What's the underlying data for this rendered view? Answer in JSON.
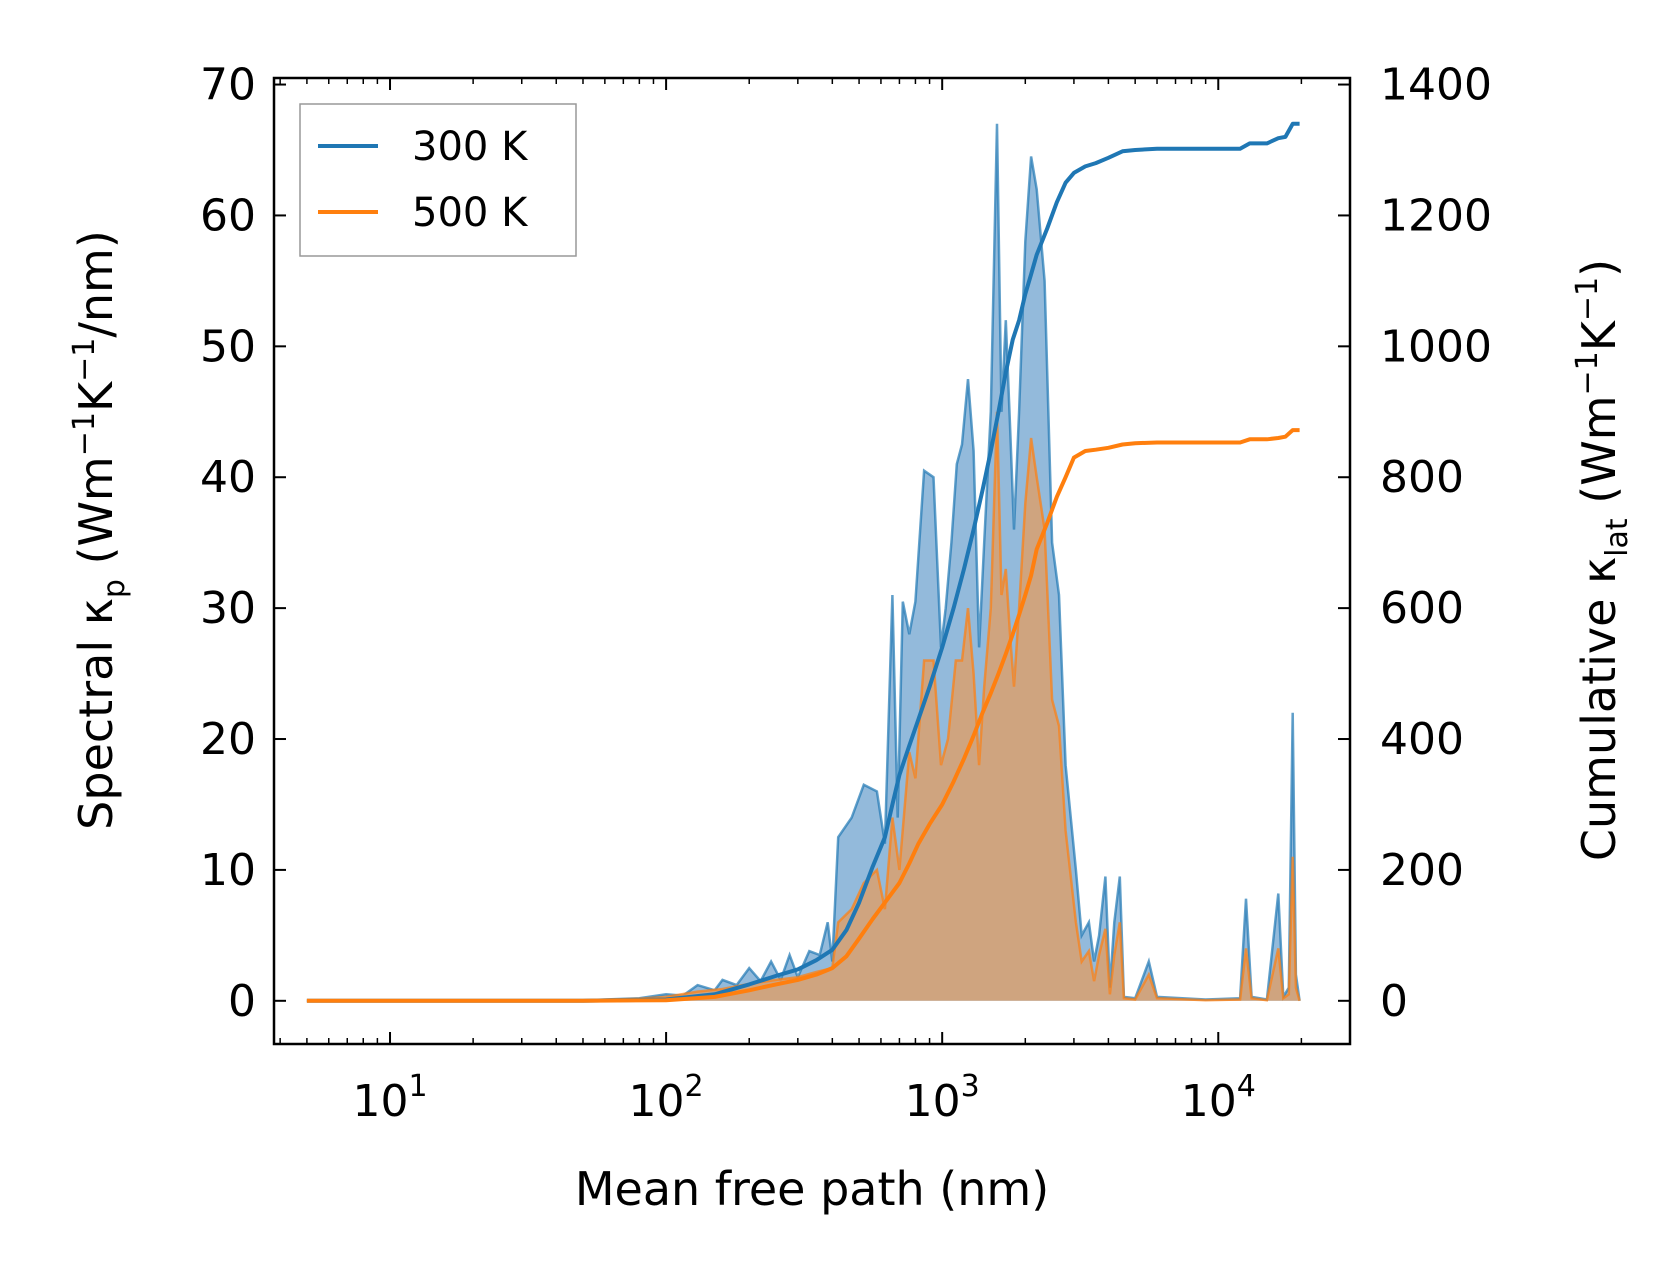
{
  "chart_data": {
    "type": "area+line (dual axis)",
    "xlabel": "Mean free path (nm)",
    "x_scale": "log",
    "xlim": [
      3.8,
      30000
    ],
    "x_ticks": [
      {
        "value": 10,
        "base": "10",
        "exp": "1"
      },
      {
        "value": 100,
        "base": "10",
        "exp": "2"
      },
      {
        "value": 1000,
        "base": "10",
        "exp": "3"
      },
      {
        "value": 10000,
        "base": "10",
        "exp": "4"
      }
    ],
    "ylabel_left": {
      "pre": "Spectral κ",
      "sub": "p",
      "mid": " (Wm",
      "sup1": "−1",
      "mid2": "K",
      "sup2": "−1",
      "post": "/nm)"
    },
    "ylim_left": [
      -3.3,
      70.5
    ],
    "y_ticks_left": [
      "0",
      "10",
      "20",
      "30",
      "40",
      "50",
      "60",
      "70"
    ],
    "ylabel_right": {
      "pre": "Cumulative κ",
      "sub": "lat",
      "mid": " (Wm",
      "sup1": "−1",
      "mid2": "K",
      "sup2": "−1",
      "post": ")"
    },
    "ylim_right": [
      -66,
      1410
    ],
    "y_ticks_right": [
      "0",
      "200",
      "400",
      "600",
      "800",
      "1000",
      "1200",
      "1400"
    ],
    "legend": {
      "location": "upper-left",
      "entries": [
        "300 K",
        "500 K"
      ]
    },
    "colors": {
      "300K": "#1f77b4",
      "500K": "#ff7f0e",
      "fill300": "#6fa3cf",
      "fill500": "#d9a06f"
    },
    "series": [
      {
        "name": "300 K",
        "kind": "spectral (left axis, filled)",
        "points": [
          [
            5,
            0
          ],
          [
            20,
            0
          ],
          [
            50,
            0.05
          ],
          [
            80,
            0.2
          ],
          [
            100,
            0.5
          ],
          [
            115,
            0.4
          ],
          [
            130,
            1.2
          ],
          [
            150,
            0.8
          ],
          [
            160,
            1.6
          ],
          [
            180,
            1.2
          ],
          [
            200,
            2.5
          ],
          [
            220,
            1.5
          ],
          [
            240,
            3.0
          ],
          [
            260,
            1.6
          ],
          [
            280,
            3.5
          ],
          [
            300,
            1.8
          ],
          [
            330,
            3.8
          ],
          [
            360,
            3.5
          ],
          [
            385,
            6
          ],
          [
            400,
            3.0
          ],
          [
            420,
            12.5
          ],
          [
            470,
            14
          ],
          [
            520,
            16.5
          ],
          [
            580,
            16
          ],
          [
            620,
            12
          ],
          [
            660,
            31
          ],
          [
            690,
            14
          ],
          [
            720,
            30.5
          ],
          [
            760,
            28
          ],
          [
            800,
            30.5
          ],
          [
            860,
            40.5
          ],
          [
            930,
            40
          ],
          [
            990,
            27
          ],
          [
            1030,
            30
          ],
          [
            1080,
            35
          ],
          [
            1130,
            41
          ],
          [
            1180,
            42.5
          ],
          [
            1240,
            47.5
          ],
          [
            1300,
            42
          ],
          [
            1360,
            27
          ],
          [
            1420,
            35
          ],
          [
            1500,
            45
          ],
          [
            1580,
            67
          ],
          [
            1640,
            45
          ],
          [
            1700,
            52
          ],
          [
            1760,
            44
          ],
          [
            1820,
            36
          ],
          [
            1900,
            45
          ],
          [
            2000,
            58
          ],
          [
            2100,
            64.5
          ],
          [
            2200,
            62
          ],
          [
            2350,
            55
          ],
          [
            2500,
            35
          ],
          [
            2650,
            31
          ],
          [
            2800,
            18
          ],
          [
            3050,
            10
          ],
          [
            3200,
            5
          ],
          [
            3400,
            6
          ],
          [
            3550,
            3
          ],
          [
            3700,
            5
          ],
          [
            3900,
            9.5
          ],
          [
            4050,
            1
          ],
          [
            4200,
            6
          ],
          [
            4400,
            9.5
          ],
          [
            4550,
            0.3
          ],
          [
            5000,
            0.2
          ],
          [
            5600,
            3
          ],
          [
            6000,
            0.3
          ],
          [
            9000,
            0.1
          ],
          [
            12000,
            0.2
          ],
          [
            12600,
            7.8
          ],
          [
            13200,
            0.3
          ],
          [
            15000,
            0.1
          ],
          [
            16500,
            8.2
          ],
          [
            17200,
            0.3
          ],
          [
            18000,
            1
          ],
          [
            18600,
            22
          ],
          [
            19100,
            2
          ],
          [
            19700,
            0
          ]
        ]
      },
      {
        "name": "500 K",
        "kind": "spectral (left axis, filled)",
        "points": [
          [
            5,
            0
          ],
          [
            20,
            0
          ],
          [
            50,
            0.05
          ],
          [
            80,
            0.15
          ],
          [
            100,
            0.3
          ],
          [
            130,
            0.7
          ],
          [
            160,
            0.9
          ],
          [
            200,
            1.3
          ],
          [
            250,
            1.6
          ],
          [
            300,
            1.8
          ],
          [
            350,
            2.2
          ],
          [
            400,
            2.5
          ],
          [
            420,
            6
          ],
          [
            470,
            7
          ],
          [
            520,
            9
          ],
          [
            580,
            10
          ],
          [
            620,
            7
          ],
          [
            660,
            14
          ],
          [
            700,
            10
          ],
          [
            760,
            19
          ],
          [
            800,
            17
          ],
          [
            860,
            26
          ],
          [
            930,
            26
          ],
          [
            990,
            18
          ],
          [
            1050,
            20
          ],
          [
            1120,
            26
          ],
          [
            1180,
            26
          ],
          [
            1240,
            30
          ],
          [
            1300,
            25
          ],
          [
            1360,
            18
          ],
          [
            1420,
            24
          ],
          [
            1500,
            30
          ],
          [
            1580,
            45
          ],
          [
            1640,
            31
          ],
          [
            1700,
            33
          ],
          [
            1760,
            28
          ],
          [
            1820,
            24
          ],
          [
            1900,
            30
          ],
          [
            2000,
            38
          ],
          [
            2100,
            43
          ],
          [
            2200,
            40
          ],
          [
            2350,
            36
          ],
          [
            2500,
            23
          ],
          [
            2650,
            21
          ],
          [
            2800,
            13
          ],
          [
            3050,
            6
          ],
          [
            3200,
            3
          ],
          [
            3400,
            3.8
          ],
          [
            3550,
            1.5
          ],
          [
            3700,
            3.5
          ],
          [
            3900,
            5.5
          ],
          [
            4050,
            0.5
          ],
          [
            4200,
            3.5
          ],
          [
            4400,
            6
          ],
          [
            4550,
            0.2
          ],
          [
            5000,
            0.1
          ],
          [
            5600,
            2
          ],
          [
            6000,
            0.2
          ],
          [
            9000,
            0.05
          ],
          [
            12000,
            0.1
          ],
          [
            12600,
            4
          ],
          [
            13200,
            0.2
          ],
          [
            15000,
            0.05
          ],
          [
            16500,
            4
          ],
          [
            17200,
            0.2
          ],
          [
            18000,
            0.5
          ],
          [
            18600,
            11
          ],
          [
            19100,
            1
          ],
          [
            19700,
            0
          ]
        ]
      },
      {
        "name": "300 K",
        "kind": "cumulative (right axis, line)",
        "points": [
          [
            5,
            0
          ],
          [
            50,
            0
          ],
          [
            100,
            2
          ],
          [
            150,
            10
          ],
          [
            200,
            25
          ],
          [
            250,
            38
          ],
          [
            300,
            48
          ],
          [
            350,
            62
          ],
          [
            400,
            78
          ],
          [
            450,
            108
          ],
          [
            500,
            150
          ],
          [
            560,
            205
          ],
          [
            620,
            250
          ],
          [
            660,
            300
          ],
          [
            700,
            345
          ],
          [
            760,
            390
          ],
          [
            820,
            430
          ],
          [
            900,
            480
          ],
          [
            1000,
            540
          ],
          [
            1100,
            600
          ],
          [
            1200,
            660
          ],
          [
            1300,
            720
          ],
          [
            1400,
            780
          ],
          [
            1500,
            840
          ],
          [
            1600,
            900
          ],
          [
            1700,
            960
          ],
          [
            1800,
            1010
          ],
          [
            1900,
            1040
          ],
          [
            2000,
            1080
          ],
          [
            2100,
            1110
          ],
          [
            2200,
            1140
          ],
          [
            2400,
            1180
          ],
          [
            2600,
            1220
          ],
          [
            2800,
            1250
          ],
          [
            3000,
            1265
          ],
          [
            3300,
            1275
          ],
          [
            3600,
            1280
          ],
          [
            4000,
            1288
          ],
          [
            4500,
            1298
          ],
          [
            5000,
            1300
          ],
          [
            6000,
            1302
          ],
          [
            10000,
            1302
          ],
          [
            12000,
            1302
          ],
          [
            13000,
            1310
          ],
          [
            15000,
            1310
          ],
          [
            16500,
            1318
          ],
          [
            17500,
            1320
          ],
          [
            18600,
            1340
          ],
          [
            19700,
            1340
          ]
        ]
      },
      {
        "name": "500 K",
        "kind": "cumulative (right axis, line)",
        "points": [
          [
            5,
            0
          ],
          [
            50,
            0
          ],
          [
            100,
            1
          ],
          [
            150,
            6
          ],
          [
            200,
            16
          ],
          [
            250,
            25
          ],
          [
            300,
            32
          ],
          [
            350,
            40
          ],
          [
            400,
            50
          ],
          [
            450,
            68
          ],
          [
            500,
            95
          ],
          [
            560,
            125
          ],
          [
            620,
            150
          ],
          [
            700,
            180
          ],
          [
            760,
            210
          ],
          [
            820,
            240
          ],
          [
            900,
            270
          ],
          [
            1000,
            300
          ],
          [
            1100,
            335
          ],
          [
            1200,
            370
          ],
          [
            1300,
            405
          ],
          [
            1400,
            440
          ],
          [
            1500,
            470
          ],
          [
            1600,
            500
          ],
          [
            1700,
            530
          ],
          [
            1800,
            560
          ],
          [
            1900,
            590
          ],
          [
            2000,
            620
          ],
          [
            2100,
            650
          ],
          [
            2200,
            690
          ],
          [
            2400,
            730
          ],
          [
            2600,
            770
          ],
          [
            2800,
            800
          ],
          [
            3000,
            830
          ],
          [
            3300,
            840
          ],
          [
            3600,
            842
          ],
          [
            4000,
            845
          ],
          [
            4500,
            850
          ],
          [
            5000,
            852
          ],
          [
            6000,
            853
          ],
          [
            10000,
            853
          ],
          [
            12000,
            853
          ],
          [
            13000,
            858
          ],
          [
            15000,
            858
          ],
          [
            16500,
            860
          ],
          [
            17500,
            862
          ],
          [
            18600,
            872
          ],
          [
            19700,
            872
          ]
        ]
      }
    ]
  }
}
